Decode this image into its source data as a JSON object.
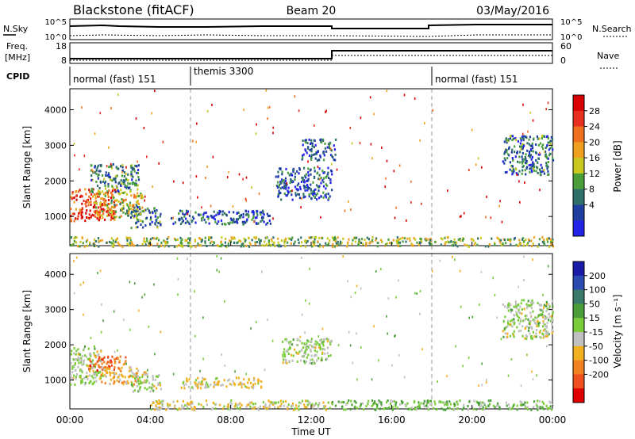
{
  "header": {
    "station": "Blackstone (fitACF)",
    "beam": "Beam 20",
    "date": "03/May/2016"
  },
  "sky_panel": {
    "left_label": "N.Sky",
    "right_label": "N.Search",
    "left_ticks": [
      "10^5",
      "10^0"
    ],
    "right_ticks": [
      "10^5",
      "10^0"
    ]
  },
  "freq_panel": {
    "left_label_1": "Freq.",
    "left_label_2": "[MHz]",
    "left_ticks": [
      "18",
      "8"
    ],
    "right_label": "Nave",
    "right_ticks": [
      "60",
      "0"
    ]
  },
  "cpid": {
    "label": "CPID",
    "segments": [
      {
        "start": 0,
        "end": 6,
        "text": "normal (fast) 151"
      },
      {
        "start": 6,
        "end": 18,
        "text": "themis 3300"
      },
      {
        "start": 18,
        "end": 24,
        "text": "normal (fast) 151"
      }
    ]
  },
  "time_axis": {
    "label": "Time UT",
    "ticks": [
      0,
      4,
      8,
      12,
      16,
      20,
      24
    ],
    "tick_labels": [
      "00:00",
      "04:00",
      "08:00",
      "12:00",
      "16:00",
      "20:00",
      "00:00"
    ]
  },
  "range_axis": {
    "label": "Slant Range [km]",
    "ticks": [
      1000,
      2000,
      3000,
      4000
    ],
    "range": [
      180,
      4590
    ]
  },
  "power_bar": {
    "title": "Power [dB]",
    "ticks": [
      "4",
      "8",
      "12",
      "16",
      "20",
      "24",
      "28"
    ],
    "colors": [
      "#2222e8",
      "#1e3fa0",
      "#2f6f6a",
      "#4a9e3a",
      "#c8c820",
      "#f0a020",
      "#f07020",
      "#e83020",
      "#d80000"
    ]
  },
  "velocity_bar": {
    "title": "Velocity [m s⁻¹]",
    "ticks": [
      "200",
      "100",
      "50",
      "15",
      "-15",
      "-50",
      "-100",
      "-200"
    ],
    "colors": [
      "#1a1aa8",
      "#2a4ab0",
      "#3a7a6a",
      "#4a9e3a",
      "#7acc3a",
      "#c0c0c0",
      "#f0b020",
      "#f08020",
      "#f05020",
      "#e00000"
    ]
  },
  "chart_data": [
    {
      "type": "heatmap",
      "name": "power",
      "xlabel": "Time UT",
      "ylabel": "Slant Range [km]",
      "xlim": [
        0,
        24
      ],
      "ylim": [
        180,
        4590
      ],
      "regions": [
        {
          "x": [
            0,
            2.3
          ],
          "y": [
            900,
            1800
          ],
          "value": 26
        },
        {
          "x": [
            1.0,
            3.4
          ],
          "y": [
            1700,
            2500
          ],
          "value": 10
        },
        {
          "x": [
            1.2,
            3.6
          ],
          "y": [
            1000,
            1700
          ],
          "value": 16
        },
        {
          "x": [
            3.0,
            4.5
          ],
          "y": [
            700,
            1300
          ],
          "value": 9
        },
        {
          "x": [
            5.0,
            10.0
          ],
          "y": [
            800,
            1200
          ],
          "value": 6
        },
        {
          "x": [
            10.2,
            13.0
          ],
          "y": [
            1500,
            2400
          ],
          "value": 6
        },
        {
          "x": [
            11.5,
            13.2
          ],
          "y": [
            2600,
            3200
          ],
          "value": 6
        },
        {
          "x": [
            21.5,
            24
          ],
          "y": [
            2200,
            3300
          ],
          "value": 8
        },
        {
          "x": [
            0,
            24
          ],
          "y": [
            180,
            450
          ],
          "value": 14
        }
      ]
    },
    {
      "type": "heatmap",
      "name": "velocity",
      "xlabel": "Time UT",
      "ylabel": "Slant Range [km]",
      "xlim": [
        0,
        24
      ],
      "ylim": [
        180,
        4590
      ],
      "regions": [
        {
          "x": [
            0,
            1.6
          ],
          "y": [
            900,
            2000
          ],
          "value": 0
        },
        {
          "x": [
            0.8,
            2.8
          ],
          "y": [
            1300,
            1700
          ],
          "value": -150
        },
        {
          "x": [
            1.5,
            3.8
          ],
          "y": [
            900,
            1400
          ],
          "value": -80
        },
        {
          "x": [
            3.0,
            4.5
          ],
          "y": [
            700,
            1200
          ],
          "value": 0
        },
        {
          "x": [
            5.5,
            9.5
          ],
          "y": [
            800,
            1100
          ],
          "value": -40
        },
        {
          "x": [
            10.5,
            13.0
          ],
          "y": [
            1500,
            2200
          ],
          "value": 0
        },
        {
          "x": [
            21.5,
            24
          ],
          "y": [
            2200,
            3300
          ],
          "value": 0
        },
        {
          "x": [
            4.0,
            13.0
          ],
          "y": [
            180,
            450
          ],
          "value": -30
        },
        {
          "x": [
            13.0,
            24
          ],
          "y": [
            180,
            450
          ],
          "value": 30
        }
      ]
    }
  ]
}
